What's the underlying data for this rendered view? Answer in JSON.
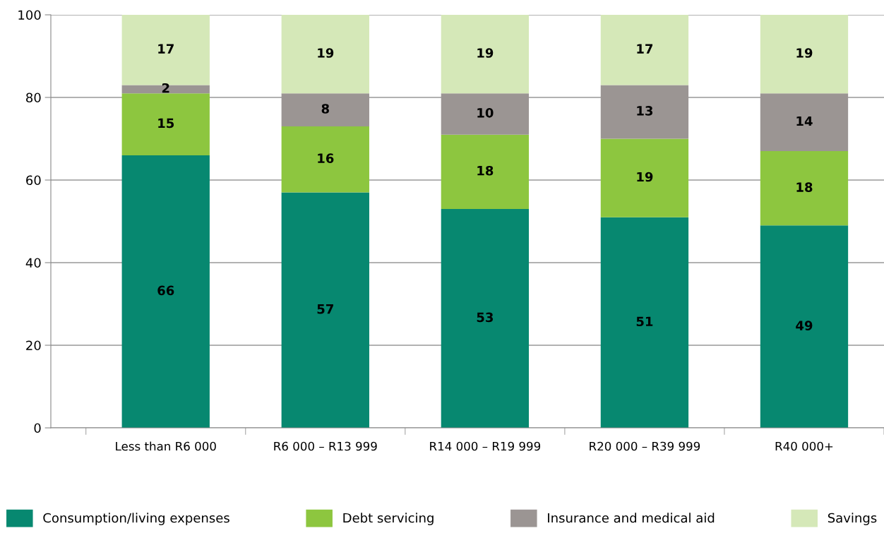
{
  "chart_data": {
    "type": "bar",
    "stacked": true,
    "categories": [
      "Less than R6 000",
      "R6 000 – R13 999",
      "R14 000 – R19 999",
      "R20 000 – R39 999",
      "R40 000+"
    ],
    "series": [
      {
        "name": "Consumption/living expenses",
        "color": "#078870",
        "values": [
          66,
          57,
          53,
          51,
          49
        ]
      },
      {
        "name": "Debt servicing",
        "color": "#8dc63f",
        "values": [
          15,
          16,
          18,
          19,
          18
        ]
      },
      {
        "name": "Insurance and medical aid",
        "color": "#9b9593",
        "values": [
          2,
          8,
          10,
          13,
          14
        ]
      },
      {
        "name": "Savings",
        "color": "#d5e8b8",
        "values": [
          17,
          19,
          19,
          17,
          19
        ]
      }
    ],
    "ylim": [
      0,
      100
    ],
    "yticks": [
      0,
      20,
      40,
      60,
      80,
      100
    ],
    "grid": "y",
    "legend": "bottom",
    "data_labels": true
  }
}
